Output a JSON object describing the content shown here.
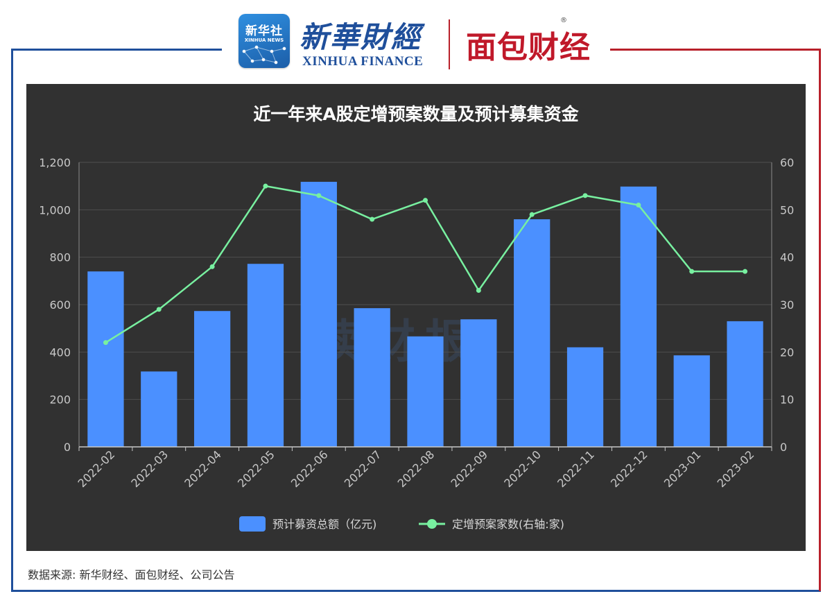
{
  "header": {
    "xinhua_badge_cn": "新华社",
    "xinhua_badge_en": "XINHUA NEWS",
    "xinhua_finance_cn": "新華財經",
    "xinhua_finance_en": "XINHUA FINANCE",
    "mianbao_cn": "面包财经",
    "registered_mark": "®"
  },
  "watermark": "读财报",
  "source": "数据来源: 新华财经、面包财经、公司公告",
  "colors": {
    "frame_blue": "#1f4f9b",
    "frame_red": "#b8202a",
    "chart_bg": "#313131",
    "bar": "#4b90ff",
    "line": "#78f0a0"
  },
  "chart_data": {
    "type": "bar",
    "title": "近一年来A股定增预案数量及预计募集资金",
    "categories": [
      "2022-02",
      "2022-03",
      "2022-04",
      "2022-05",
      "2022-06",
      "2022-07",
      "2022-08",
      "2022-09",
      "2022-10",
      "2022-11",
      "2022-12",
      "2023-01",
      "2023-02"
    ],
    "series": [
      {
        "name": "预计募资总额（亿元)",
        "type": "bar",
        "axis": "left",
        "values": [
          740,
          318,
          573,
          772,
          1118,
          585,
          466,
          538,
          960,
          420,
          1098,
          386,
          530
        ]
      },
      {
        "name": "定增预案家数(右轴:家)",
        "type": "line",
        "axis": "right",
        "values": [
          22,
          29,
          38,
          55,
          53,
          48,
          52,
          33,
          49,
          53,
          51,
          37,
          37
        ]
      }
    ],
    "y_left": {
      "ylim": [
        0,
        1200
      ],
      "ticks": [
        "0",
        "200",
        "400",
        "600",
        "800",
        "1,000",
        "1,200"
      ]
    },
    "y_right": {
      "ylim": [
        0,
        60
      ],
      "ticks": [
        "0",
        "10",
        "20",
        "30",
        "40",
        "50",
        "60"
      ]
    },
    "grid": true,
    "legend": "bottom-center"
  }
}
